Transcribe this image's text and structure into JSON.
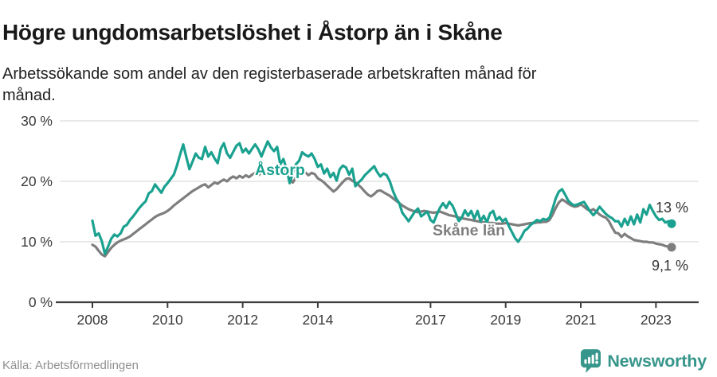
{
  "header": {
    "title": "Högre ungdomsarbetslöshet i Åstorp än i Skåne",
    "subtitle": "Arbetssökande som andel av den registerbaserade arbetskraften månad för månad."
  },
  "footer": {
    "source": "Källa: Arbetsförmedlingen",
    "brand": "Newsworthy"
  },
  "colors": {
    "accent_teal": "#1aa18f",
    "series_gray": "#7e7e7e",
    "grid": "#dcdcdc",
    "axis": "#3c3c3c",
    "tick_text": "#3a3a3a",
    "value_label": "#333333",
    "logo_teal": "#37968b"
  },
  "chart_data": {
    "type": "line",
    "title": "Högre ungdomsarbetslöshet i Åstorp än i Skåne",
    "subtitle": "Arbetssökande som andel av den registerbaserade arbetskraften månad för månad.",
    "x_axis": {
      "start_year": 2008,
      "start_month": 1,
      "months": 186,
      "ticks": [
        {
          "label": "2008",
          "year": 2008
        },
        {
          "label": "2010",
          "year": 2010
        },
        {
          "label": "2012",
          "year": 2012
        },
        {
          "label": "2014",
          "year": 2014
        },
        {
          "label": "2017",
          "year": 2017
        },
        {
          "label": "2019",
          "year": 2019
        },
        {
          "label": "2021",
          "year": 2021
        },
        {
          "label": "2023",
          "year": 2023
        }
      ]
    },
    "y_axis": {
      "min": 0,
      "max": 30,
      "unit": "%",
      "grid": true,
      "ticks": [
        {
          "label": "0 %",
          "value": 0
        },
        {
          "label": "10 %",
          "value": 10
        },
        {
          "label": "20 %",
          "value": 20
        },
        {
          "label": "30 %",
          "value": 30
        }
      ]
    },
    "legend_position": "inline-labels",
    "series": [
      {
        "name": "Skåne län",
        "color": "#7e7e7e",
        "end_label": "9,1 %",
        "end_value": 9.1,
        "values": [
          9.5,
          9.2,
          8.5,
          7.9,
          7.6,
          8.3,
          9.0,
          9.5,
          9.9,
          10.2,
          10.4,
          10.6,
          10.9,
          11.3,
          11.7,
          12.1,
          12.5,
          12.9,
          13.3,
          13.7,
          14.1,
          14.4,
          14.6,
          14.8,
          15.1,
          15.5,
          16.0,
          16.4,
          16.8,
          17.2,
          17.6,
          18.0,
          18.4,
          18.7,
          19.0,
          19.3,
          19.5,
          19.0,
          19.4,
          19.8,
          19.6,
          20.0,
          20.3,
          20.0,
          20.5,
          20.8,
          20.5,
          20.9,
          20.6,
          21.0,
          20.7,
          21.1,
          21.4,
          21.0,
          21.5,
          21.2,
          21.8,
          22.0,
          21.6,
          22.3,
          21.9,
          22.1,
          21.4,
          20.5,
          19.8,
          20.6,
          21.2,
          21.8,
          21.5,
          21.0,
          21.4,
          21.2,
          20.5,
          20.2,
          19.8,
          19.3,
          18.8,
          18.3,
          18.7,
          19.3,
          19.9,
          20.4,
          20.5,
          20.1,
          19.8,
          19.4,
          18.9,
          18.3,
          17.8,
          17.5,
          17.9,
          18.4,
          18.5,
          18.2,
          17.9,
          17.6,
          17.2,
          16.8,
          16.4,
          16.0,
          15.7,
          15.4,
          15.2,
          15.0,
          14.9,
          15.0,
          15.1,
          15.0,
          14.9,
          14.8,
          14.9,
          15.0,
          14.8,
          14.6,
          14.4,
          14.3,
          14.2,
          14.0,
          13.9,
          13.8,
          13.7,
          13.6,
          13.5,
          13.4,
          13.3,
          13.2,
          13.2,
          13.1,
          13.1,
          13.0,
          13.0,
          13.0,
          13.1,
          13.0,
          12.9,
          12.8,
          12.7,
          12.8,
          12.9,
          13.0,
          13.1,
          13.1,
          13.2,
          13.2,
          13.3,
          13.3,
          13.6,
          14.5,
          15.6,
          16.5,
          17.0,
          16.7,
          16.3,
          16.0,
          15.8,
          15.9,
          16.2,
          15.8,
          15.4,
          15.1,
          15.4,
          15.0,
          14.5,
          14.2,
          14.0,
          13.4,
          12.4,
          11.5,
          11.4,
          10.8,
          11.3,
          10.9,
          10.6,
          10.3,
          10.2,
          10.1,
          10.0,
          10.0,
          9.9,
          9.9,
          9.7,
          9.6,
          9.5,
          9.3,
          9.2,
          9.1
        ]
      },
      {
        "name": "Åstorp",
        "color": "#1aa18f",
        "end_label": "13 %",
        "end_value": 13.0,
        "values": [
          13.5,
          11.0,
          11.4,
          10.1,
          8.0,
          9.2,
          10.5,
          11.2,
          10.9,
          11.4,
          12.5,
          12.8,
          13.6,
          14.2,
          14.9,
          15.6,
          16.2,
          16.7,
          18.0,
          18.4,
          19.5,
          18.8,
          18.1,
          19.1,
          19.7,
          20.4,
          21.1,
          22.6,
          24.4,
          26.1,
          24.0,
          22.0,
          23.3,
          24.6,
          23.9,
          23.7,
          25.7,
          24.1,
          24.8,
          23.8,
          23.0,
          25.4,
          26.3,
          24.6,
          23.9,
          24.9,
          25.9,
          26.3,
          24.8,
          25.4,
          24.6,
          25.4,
          26.1,
          25.3,
          24.1,
          25.4,
          26.6,
          25.6,
          25.0,
          25.7,
          22.8,
          23.7,
          22.1,
          19.7,
          21.4,
          22.8,
          23.4,
          24.8,
          24.4,
          24.1,
          24.6,
          23.7,
          22.4,
          22.8,
          21.3,
          22.1,
          20.7,
          21.4,
          20.1,
          22.0,
          22.6,
          22.3,
          21.1,
          22.1,
          19.2,
          19.8,
          20.3,
          21.0,
          21.5,
          22.0,
          22.5,
          21.5,
          20.8,
          21.3,
          21.0,
          20.0,
          18.4,
          17.2,
          16.4,
          14.8,
          14.1,
          13.4,
          14.2,
          15.0,
          15.5,
          14.2,
          14.6,
          15.0,
          13.6,
          13.2,
          14.5,
          15.6,
          16.4,
          15.6,
          16.6,
          16.0,
          14.8,
          13.4,
          14.0,
          15.2,
          14.3,
          15.1,
          13.8,
          15.1,
          13.4,
          14.3,
          13.2,
          14.7,
          15.1,
          13.6,
          14.1,
          13.4,
          13.8,
          12.6,
          11.6,
          10.6,
          10.0,
          10.8,
          11.8,
          12.2,
          12.8,
          13.2,
          13.6,
          13.4,
          13.8,
          13.6,
          14.0,
          15.5,
          17.2,
          18.3,
          18.7,
          17.8,
          16.8,
          16.3,
          16.0,
          16.2,
          16.4,
          16.6,
          15.8,
          15.0,
          14.4,
          15.0,
          15.8,
          15.2,
          14.6,
          14.2,
          13.9,
          13.4,
          13.4,
          12.5,
          13.8,
          12.8,
          14.2,
          12.9,
          14.5,
          13.2,
          15.4,
          14.5,
          16.1,
          15.1,
          14.2,
          13.6,
          13.8,
          13.2,
          13.4,
          13.0
        ]
      }
    ],
    "annotations": [
      {
        "id": "astorp-series-label",
        "text": "Åstorp",
        "series": "Åstorp"
      },
      {
        "id": "skane-series-label",
        "text": "Skåne län",
        "series": "Skåne län"
      }
    ]
  }
}
